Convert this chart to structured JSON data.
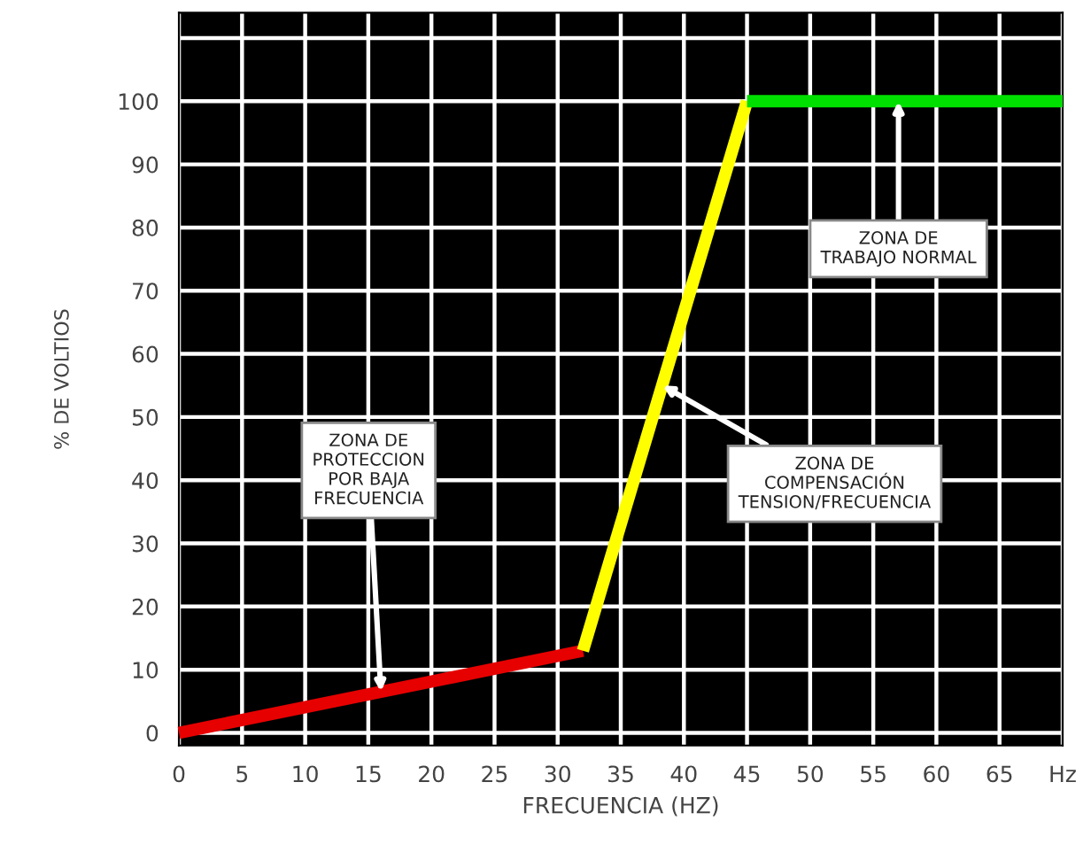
{
  "chart_data": {
    "type": "line",
    "xlabel": "FRECUENCIA (HZ)",
    "ylabel": "% DE VOLTIOS",
    "series": [
      {
        "color": "#e60000",
        "x": [
          0,
          32
        ],
        "values": [
          0,
          13
        ]
      },
      {
        "color": "#ffff00",
        "x": [
          32,
          45
        ],
        "values": [
          13,
          100
        ]
      },
      {
        "color": "#00e000",
        "x": [
          45,
          70
        ],
        "values": [
          100,
          100
        ]
      }
    ],
    "xlim": [
      0,
      70
    ],
    "ylim": [
      -2,
      114
    ],
    "xticks": [
      0,
      5,
      10,
      15,
      20,
      25,
      30,
      35,
      40,
      45,
      50,
      55,
      60,
      65,
      {
        "value": 70,
        "label": "Hz"
      }
    ],
    "yticks": [
      0,
      10,
      20,
      30,
      40,
      50,
      60,
      70,
      80,
      90,
      100,
      {
        "value": 110,
        "label": null
      }
    ],
    "grid": true,
    "marker": "none",
    "line_style": "solid",
    "legend": false,
    "annotations": [
      {
        "text": "ZONA DE\nTRABAJO NORMAL",
        "x": 57,
        "y": 100
      },
      {
        "text": "ZONA DE\nPROTECCION\nPOR BAJA\nFRECUENCIA",
        "x": 16,
        "y": 6.5
      },
      {
        "text": "ZONA DE\nCOMPENSACIÓN\nTENSION/FRECUENCIA",
        "x": 38.3,
        "y": 55
      }
    ]
  }
}
